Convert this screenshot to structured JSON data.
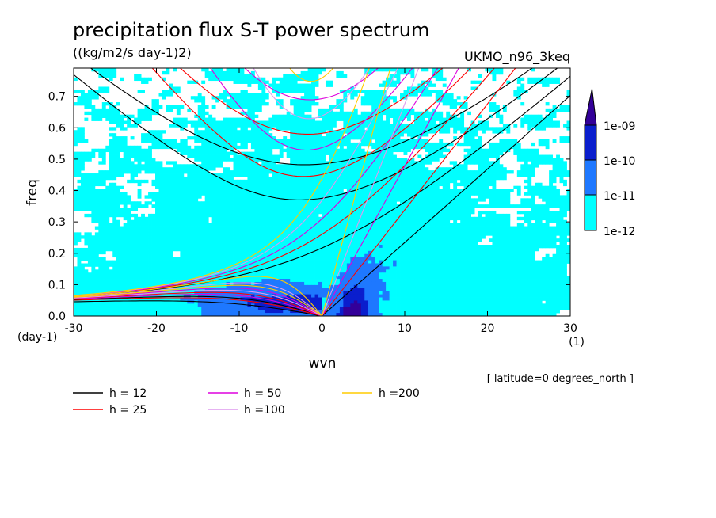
{
  "chart_data": {
    "type": "heatmap",
    "title": "precipitation flux S-T power spectrum",
    "subtitle": "((kg/m2/s day-1)2)",
    "dataset": "UKMO_n96_3keq",
    "xlabel": "wvn",
    "ylabel": "freq",
    "x_unit": "(1)",
    "y_unit": "(day-1)",
    "footnote": "[ latitude=0 degrees_north ]",
    "xlim": [
      -30,
      30
    ],
    "ylim": [
      0,
      0.79
    ],
    "x_ticks": [
      "-30",
      "-20",
      "-10",
      "0",
      "10",
      "20",
      "30"
    ],
    "x_tick_values": [
      -30,
      -20,
      -10,
      0,
      10,
      20,
      30
    ],
    "y_ticks": [
      "0.0",
      "0.1",
      "0.2",
      "0.3",
      "0.4",
      "0.5",
      "0.6",
      "0.7"
    ],
    "y_tick_values": [
      0,
      0.1,
      0.2,
      0.3,
      0.4,
      0.5,
      0.6,
      0.7
    ],
    "colorbar": {
      "labels": [
        "1e-12",
        "1e-11",
        "1e-10",
        "1e-09"
      ],
      "colors": [
        "#00ffff",
        "#1e78ff",
        "#0a1ecd",
        "#330099"
      ]
    },
    "dispersion_curves": [
      {
        "name": "h = 12",
        "h": 12,
        "color": "#000000"
      },
      {
        "name": "h = 25",
        "h": 25,
        "color": "#ff0000"
      },
      {
        "name": "h = 50",
        "h": 50,
        "color": "#dd00dd"
      },
      {
        "name": "h =100",
        "h": 100,
        "color": "#dd99ee"
      },
      {
        "name": "h =200",
        "h": 200,
        "color": "#ffcc00"
      }
    ]
  }
}
